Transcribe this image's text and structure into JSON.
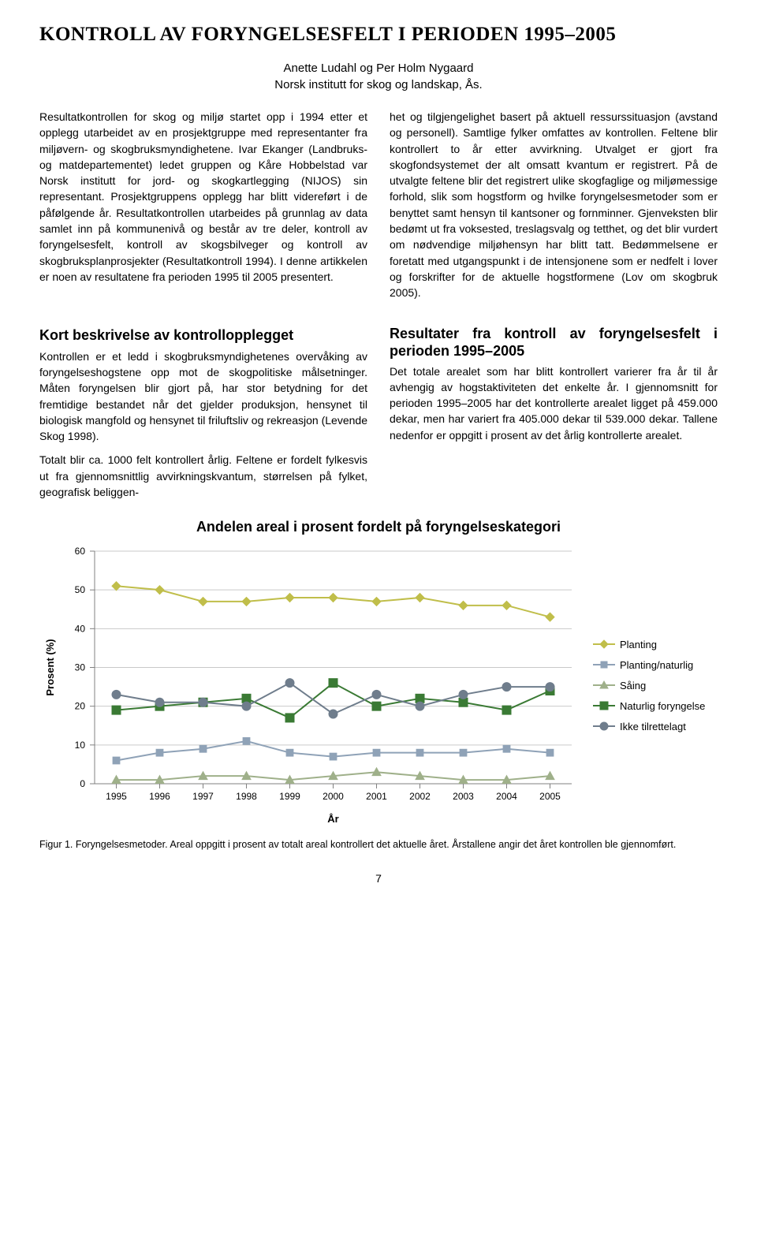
{
  "title": "KONTROLL AV FORYNGELSESFELT I PERIODEN 1995–2005",
  "authors": "Anette Ludahl og Per Holm Nygaard",
  "institute": "Norsk institutt for skog og landskap, Ås.",
  "intro_left": "Resultatkontrollen for skog og miljø startet opp i 1994 etter et opplegg utarbeidet av en prosjektgruppe med representanter fra miljøvern- og skogbruksmyndighetene. Ivar Ekanger (Landbruks- og matdepartementet) ledet gruppen og Kåre Hobbelstad var Norsk institutt for jord- og skogkartlegging (NIJOS) sin representant. Prosjektgruppens opplegg har blitt videreført i de påfølgende år. Resultatkontrollen utarbeides på grunnlag av data samlet inn på kommunenivå og består av tre deler, kontroll av foryngelsesfelt, kontroll av skogsbilveger og kontroll av skogbruksplanprosjekter (Resultatkontroll 1994). I denne artikkelen er noen av resultatene fra perioden 1995 til 2005 presentert.",
  "intro_right": "het og tilgjengelighet basert på aktuell ressurssituasjon (avstand og personell). Samtlige fylker omfattes av kontrollen. Feltene blir kontrollert to år etter avvirkning. Utvalget er gjort fra skogfondsystemet der alt omsatt kvantum er registrert. På de utvalgte feltene blir det registrert ulike skogfaglige og miljømessige forhold, slik som hogstform og hvilke foryngelsesmetoder som er benyttet samt hensyn til kantsoner og fornminner. Gjenveksten blir bedømt ut fra voksested, treslagsvalg og tetthet, og det blir vurdert om nødvendige miljøhensyn har blitt tatt. Bedømmelsene er foretatt med utgangspunkt i de intensjonene som er nedfelt i lover og forskrifter for de aktuelle hogstformene (Lov om skogbruk 2005).",
  "section1_heading": "Kort beskrivelse av kontrollopplegget",
  "section1_p1": "Kontrollen er et ledd i skogbruksmyndighetenes overvåking av foryngelseshogstene opp mot de skogpolitiske målsetninger. Måten foryngelsen blir gjort på, har stor betydning for det fremtidige bestandet når det gjelder produksjon, hensynet til biologisk mangfold og hensynet til friluftsliv og rekreasjon (Levende Skog 1998).",
  "section1_p2": "Totalt blir ca. 1000 felt kontrollert årlig. Feltene er fordelt fylkesvis ut fra gjennomsnittlig avvirkningskvantum, størrelsen på fylket, geografisk beliggen-",
  "section2_heading": "Resultater fra kontroll av foryngelsesfelt i perioden 1995–2005",
  "section2_p1": "Det totale arealet som har blitt kontrollert varierer fra år til år avhengig av hogstaktiviteten det enkelte år. I gjennomsnitt for perioden 1995–2005 har det kontrollerte arealet ligget på 459.000 dekar, men har variert fra 405.000 dekar til 539.000 dekar. Tallene nedenfor er oppgitt i prosent av det årlig kontrollerte arealet.",
  "chart": {
    "title": "Andelen areal i prosent fordelt på foryngelseskategori",
    "type": "line",
    "xlabel": "År",
    "ylabel": "Prosent (%)",
    "ylim": [
      0,
      60
    ],
    "ytick_step": 10,
    "categories": [
      "1995",
      "1996",
      "1997",
      "1998",
      "1999",
      "2000",
      "2001",
      "2002",
      "2003",
      "2004",
      "2005"
    ],
    "background_color": "#ffffff",
    "grid_color": "#c9c9c9",
    "axis_color": "#808080",
    "label_fontsize": 13,
    "tick_fontsize": 12,
    "line_width": 2,
    "marker_size": 7,
    "series": [
      {
        "name": "Planting",
        "marker": "diamond",
        "color": "#c0be4a",
        "values": [
          51,
          50,
          47,
          47,
          48,
          48,
          47,
          48,
          46,
          46,
          43
        ]
      },
      {
        "name": "Planting/naturlig",
        "marker": "square-small",
        "color": "#8fa2b7",
        "values": [
          6,
          8,
          9,
          11,
          8,
          7,
          8,
          8,
          8,
          9,
          8
        ]
      },
      {
        "name": "Såing",
        "marker": "triangle",
        "color": "#9fb08a",
        "values": [
          1,
          1,
          2,
          2,
          1,
          2,
          3,
          2,
          1,
          1,
          2
        ]
      },
      {
        "name": "Naturlig foryngelse",
        "marker": "square-large",
        "color": "#3a7a34",
        "values": [
          19,
          20,
          21,
          22,
          17,
          26,
          20,
          22,
          21,
          19,
          24
        ]
      },
      {
        "name": "Ikke tilrettelagt",
        "marker": "circle",
        "color": "#6f7d8c",
        "values": [
          23,
          21,
          21,
          20,
          26,
          18,
          23,
          20,
          23,
          25,
          25
        ]
      }
    ]
  },
  "figure_caption": "Figur 1. Foryngelsesmetoder. Areal oppgitt i prosent av totalt areal kontrollert det aktuelle året. Årstallene angir det året kontrollen ble gjennomført.",
  "page_number": "7"
}
